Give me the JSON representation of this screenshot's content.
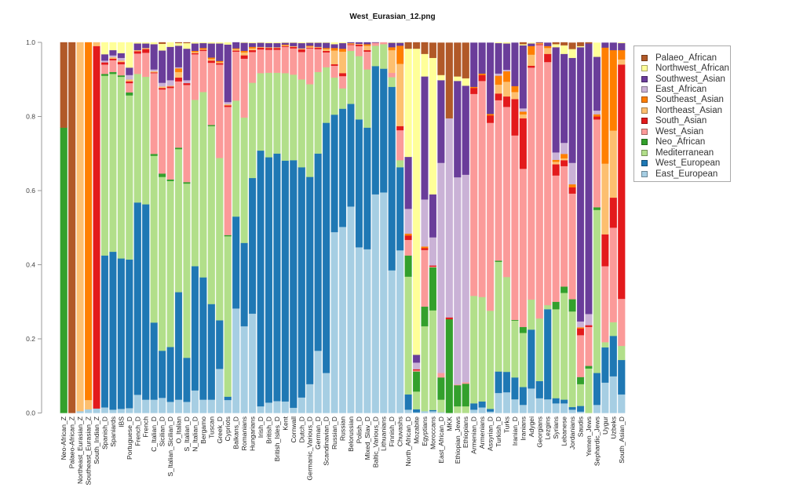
{
  "chart_data": {
    "type": "bar",
    "stacked": true,
    "title": "West_Eurasian_12.png",
    "xlabel": "",
    "ylabel": "",
    "ylim": [
      0,
      1
    ],
    "yticks": [
      "0.0",
      "0.2",
      "0.4",
      "0.6",
      "0.8",
      "1.0"
    ],
    "grid": false,
    "legend_position": "right",
    "components": [
      {
        "name": "East_European",
        "color": "#a6cee3"
      },
      {
        "name": "West_European",
        "color": "#1f78b4"
      },
      {
        "name": "Mediterranean",
        "color": "#b2df8a"
      },
      {
        "name": "Neo_African",
        "color": "#33a02c"
      },
      {
        "name": "West_Asian",
        "color": "#fb9a99"
      },
      {
        "name": "South_Asian",
        "color": "#e31a1c"
      },
      {
        "name": "Northeast_Asian",
        "color": "#fdbf6f"
      },
      {
        "name": "Southeast_Asian",
        "color": "#ff7f00"
      },
      {
        "name": "East_African",
        "color": "#cab2d6"
      },
      {
        "name": "Southwest_Asian",
        "color": "#6a3d9a"
      },
      {
        "name": "Northwest_African",
        "color": "#ffff99"
      },
      {
        "name": "Palaeo_African",
        "color": "#b15928"
      }
    ],
    "bars": [
      {
        "label": "Neo-African_Z",
        "values": [
          0,
          0,
          0,
          0.77,
          0,
          0,
          0,
          0,
          0,
          0,
          0,
          0.23
        ]
      },
      {
        "label": "Palaeo-African_Z",
        "values": [
          0,
          0,
          0,
          0,
          0,
          0,
          0,
          0,
          0,
          0,
          0,
          1
        ]
      },
      {
        "label": "Northeast_Eurasian_Z",
        "values": [
          0.005,
          0,
          0,
          0,
          0,
          0,
          0.995,
          0,
          0,
          0,
          0,
          0
        ]
      },
      {
        "label": "Southeast_Eurasian_Z",
        "values": [
          0.01,
          0,
          0,
          0,
          0,
          0,
          0.025,
          0.965,
          0,
          0,
          0,
          0
        ]
      },
      {
        "label": "South_Indian_Z",
        "values": [
          0.012,
          0,
          0,
          0,
          0,
          0.978,
          0.01,
          0,
          0,
          0,
          0,
          0
        ]
      },
      {
        "label": "Spanish_D",
        "values": [
          0.015,
          0.41,
          0.485,
          0.005,
          0.025,
          0.006,
          0,
          0,
          0.005,
          0.017,
          0.032,
          0
        ]
      },
      {
        "label": "Spaniards",
        "values": [
          0.009,
          0.426,
          0.48,
          0.005,
          0.032,
          0.004,
          0.004,
          0,
          0.005,
          0.014,
          0.021,
          0
        ]
      },
      {
        "label": "IBS",
        "values": [
          0.011,
          0.406,
          0.49,
          0.004,
          0.03,
          0.006,
          0.004,
          0,
          0.007,
          0.013,
          0.029,
          0
        ]
      },
      {
        "label": "Portuguese_D",
        "values": [
          0.013,
          0.401,
          0.443,
          0.008,
          0.025,
          0.005,
          0.005,
          0,
          0.012,
          0.02,
          0.068,
          0
        ]
      },
      {
        "label": "French_D",
        "values": [
          0.049,
          0.519,
          0.347,
          0,
          0.055,
          0.006,
          0.003,
          0,
          0,
          0.018,
          0.003,
          0
        ]
      },
      {
        "label": "French",
        "values": [
          0.036,
          0.527,
          0.344,
          0,
          0.065,
          0.01,
          0.003,
          0,
          0,
          0.012,
          0.003,
          0
        ]
      },
      {
        "label": "C_Italian_D",
        "values": [
          0.036,
          0.208,
          0.45,
          0.005,
          0.218,
          0.002,
          0.003,
          0,
          0.005,
          0.068,
          0.005,
          0
        ]
      },
      {
        "label": "Sicilian_D",
        "values": [
          0.041,
          0.127,
          0.469,
          0.009,
          0.227,
          0.004,
          0.004,
          0,
          0.01,
          0.087,
          0.018,
          0.004
        ]
      },
      {
        "label": "S_Italian_Sicilian_D",
        "values": [
          0.03,
          0.148,
          0.448,
          0.004,
          0.247,
          0.004,
          0.002,
          0,
          0.015,
          0.09,
          0.012,
          0
        ]
      },
      {
        "label": "O_Italian",
        "values": [
          0.036,
          0.29,
          0.386,
          0.004,
          0.179,
          0.01,
          0.015,
          0.01,
          0.003,
          0.058,
          0.007,
          0.002
        ]
      },
      {
        "label": "S_Italian_D",
        "values": [
          0.03,
          0.119,
          0.47,
          0.004,
          0.262,
          0.005,
          0,
          0,
          0.008,
          0.085,
          0.015,
          0.002
        ]
      },
      {
        "label": "N_Italian_D",
        "values": [
          0.061,
          0.335,
          0.449,
          0,
          0.123,
          0.003,
          0.003,
          0.003,
          0,
          0.02,
          0.003,
          0
        ]
      },
      {
        "label": "Bergamo",
        "values": [
          0.036,
          0.33,
          0.5,
          0,
          0.111,
          0.003,
          0.002,
          0.003,
          0,
          0.013,
          0.002,
          0
        ]
      },
      {
        "label": "Tuscan",
        "values": [
          0.036,
          0.258,
          0.48,
          0.003,
          0.168,
          0.006,
          0.004,
          0.004,
          0,
          0.038,
          0.003,
          0
        ]
      },
      {
        "label": "Greek_D",
        "values": [
          0.119,
          0.131,
          0.438,
          0,
          0.252,
          0.004,
          0.003,
          0.003,
          0,
          0.047,
          0.003,
          0
        ]
      },
      {
        "label": "Cypriots",
        "values": [
          0.035,
          0.009,
          0.433,
          0.003,
          0.346,
          0.004,
          0.003,
          0,
          0.006,
          0.155,
          0.006,
          0
        ]
      },
      {
        "label": "Balkans_D",
        "values": [
          0.282,
          0.248,
          0.313,
          0,
          0.132,
          0.003,
          0.004,
          0.002,
          0,
          0.016,
          0,
          0
        ]
      },
      {
        "label": "Romanians",
        "values": [
          0.234,
          0.225,
          0.338,
          0,
          0.159,
          0.009,
          0.008,
          0.004,
          0,
          0.022,
          0.001,
          0
        ]
      },
      {
        "label": "Hungarians",
        "values": [
          0.268,
          0.366,
          0.257,
          0,
          0.083,
          0.005,
          0.005,
          0.004,
          0,
          0.01,
          0.002,
          0
        ]
      },
      {
        "label": "Irish_D",
        "values": [
          0.018,
          0.69,
          0.209,
          0,
          0.064,
          0.005,
          0.002,
          0,
          0,
          0.011,
          0.001,
          0
        ]
      },
      {
        "label": "British_D",
        "values": [
          0.028,
          0.662,
          0.228,
          0,
          0.062,
          0.005,
          0.002,
          0,
          0,
          0.011,
          0.002,
          0
        ]
      },
      {
        "label": "British_Isles_D",
        "values": [
          0.032,
          0.668,
          0.218,
          0,
          0.062,
          0.005,
          0.002,
          0,
          0,
          0.011,
          0.002,
          0
        ]
      },
      {
        "label": "Kent",
        "values": [
          0.031,
          0.65,
          0.236,
          0,
          0.071,
          0.002,
          0.002,
          0.002,
          0,
          0.005,
          0.001,
          0
        ]
      },
      {
        "label": "Cornwall",
        "values": [
          0.014,
          0.668,
          0.231,
          0,
          0.071,
          0.004,
          0.002,
          0,
          0,
          0.009,
          0.001,
          0
        ]
      },
      {
        "label": "Dutch_D",
        "values": [
          0.042,
          0.621,
          0.237,
          0,
          0.074,
          0.007,
          0.003,
          0,
          0,
          0.014,
          0.002,
          0
        ]
      },
      {
        "label": "Germanic_Various_D",
        "values": [
          0.078,
          0.559,
          0.25,
          0,
          0.097,
          0.002,
          0.003,
          0.002,
          0,
          0.008,
          0.001,
          0
        ]
      },
      {
        "label": "German_D",
        "values": [
          0.168,
          0.532,
          0.22,
          0,
          0.062,
          0.004,
          0.002,
          0,
          0,
          0.011,
          0.001,
          0
        ]
      },
      {
        "label": "Scandinavian_D",
        "values": [
          0.108,
          0.675,
          0.15,
          0,
          0.04,
          0.004,
          0.005,
          0.003,
          0,
          0.014,
          0.001,
          0
        ]
      },
      {
        "label": "Russian_D",
        "values": [
          0.488,
          0.317,
          0.1,
          0,
          0.032,
          0.004,
          0.037,
          0.007,
          0,
          0.01,
          0.005,
          0
        ]
      },
      {
        "label": "Russian",
        "values": [
          0.502,
          0.319,
          0.055,
          0,
          0.033,
          0.008,
          0.058,
          0.008,
          0,
          0.015,
          0.002,
          0
        ]
      },
      {
        "label": "Belorussian",
        "values": [
          0.557,
          0.277,
          0.143,
          0,
          0.016,
          0.002,
          0.002,
          0.001,
          0,
          0.002,
          0,
          0
        ]
      },
      {
        "label": "Polish_D",
        "values": [
          0.447,
          0.345,
          0.171,
          0,
          0.027,
          0.004,
          0.002,
          0,
          0,
          0.004,
          0,
          0
        ]
      },
      {
        "label": "Mixed_Slav_D",
        "values": [
          0.442,
          0.328,
          0.157,
          0,
          0.048,
          0.004,
          0.012,
          0.004,
          0,
          0.005,
          0,
          0
        ]
      },
      {
        "label": "Baltic_Various_D",
        "values": [
          0.59,
          0.346,
          0.055,
          0,
          0.008,
          0,
          0,
          0,
          0,
          0.001,
          0,
          0
        ]
      },
      {
        "label": "Lithuanians",
        "values": [
          0.595,
          0.334,
          0.066,
          0,
          0.005,
          0,
          0,
          0,
          0,
          0,
          0,
          0
        ]
      },
      {
        "label": "Finnish_D",
        "values": [
          0.385,
          0.495,
          0.026,
          0,
          0.012,
          0,
          0.061,
          0.008,
          0,
          0.012,
          0.001,
          0
        ]
      },
      {
        "label": "Chuvashs",
        "values": [
          0.439,
          0.224,
          0.019,
          0,
          0.081,
          0.011,
          0.168,
          0.049,
          0,
          0.008,
          0.001,
          0
        ]
      },
      {
        "label": "North_African_D",
        "values": [
          0.009,
          0.041,
          0.318,
          0.057,
          0.042,
          0.012,
          0,
          0.005,
          0.067,
          0.14,
          0.292,
          0.017
        ]
      },
      {
        "label": "Mozabite",
        "values": [
          0.002,
          0.008,
          0.048,
          0.054,
          0.003,
          0.003,
          0,
          0,
          0.018,
          0.021,
          0.826,
          0.017
        ]
      },
      {
        "label": "Egyptians",
        "values": [
          0.005,
          0,
          0.229,
          0.053,
          0.153,
          0.005,
          0,
          0.004,
          0.127,
          0.332,
          0.061,
          0.031
        ]
      },
      {
        "label": "Moroccans",
        "values": [
          0.005,
          0.003,
          0.269,
          0.116,
          0.002,
          0.003,
          0,
          0,
          0.076,
          0.116,
          0.368,
          0.041
        ]
      },
      {
        "label": "East_African_D",
        "values": [
          0.002,
          0,
          0.034,
          0.06,
          0.012,
          0,
          0,
          0,
          0.567,
          0.223,
          0.014,
          0.087
        ]
      },
      {
        "label": "MKK",
        "values": [
          0,
          0,
          0,
          0.253,
          0,
          0.005,
          0,
          0,
          0.537,
          0,
          0,
          0.204
        ]
      },
      {
        "label": "Ethiopian_Jews",
        "values": [
          0,
          0,
          0.018,
          0.057,
          0.002,
          0,
          0,
          0,
          0.559,
          0.26,
          0.012,
          0.091
        ]
      },
      {
        "label": "Ethiopians",
        "values": [
          0,
          0,
          0.018,
          0.061,
          0.004,
          0,
          0,
          0,
          0.56,
          0.24,
          0.02,
          0.096
        ]
      },
      {
        "label": "Armenian_D",
        "values": [
          0.009,
          0.017,
          0.29,
          0,
          0.545,
          0.016,
          0,
          0.003,
          0,
          0.119,
          0,
          0
        ]
      },
      {
        "label": "Armenians",
        "values": [
          0.015,
          0.016,
          0.282,
          0,
          0.583,
          0.016,
          0,
          0.004,
          0,
          0.083,
          0,
          0
        ]
      },
      {
        "label": "Assyrian_D",
        "values": [
          0.004,
          0.007,
          0.265,
          0,
          0.507,
          0.02,
          0,
          0.004,
          0,
          0.192,
          0,
          0
        ]
      },
      {
        "label": "Turkish_D",
        "values": [
          0.054,
          0.058,
          0.296,
          0.003,
          0.433,
          0.018,
          0.024,
          0.024,
          0.006,
          0.082,
          0.002,
          0
        ]
      },
      {
        "label": "Turks",
        "values": [
          0.056,
          0.055,
          0.256,
          0,
          0.459,
          0.028,
          0.04,
          0.028,
          0.004,
          0.071,
          0.003,
          0
        ]
      },
      {
        "label": "Iranian_D",
        "values": [
          0.037,
          0.059,
          0.153,
          0.002,
          0.498,
          0.098,
          0.019,
          0.016,
          0,
          0.117,
          0,
          0
        ]
      },
      {
        "label": "Iranians",
        "values": [
          0.022,
          0.048,
          0.146,
          0.016,
          0.427,
          0.136,
          0.011,
          0.007,
          0.009,
          0.17,
          0.003,
          0.005
        ]
      },
      {
        "label": "Adygei",
        "values": [
          0.066,
          0.159,
          0.081,
          0,
          0.626,
          0.005,
          0.03,
          0.023,
          0,
          0.007,
          0.002,
          0
        ]
      },
      {
        "label": "Georgians",
        "values": [
          0.04,
          0.046,
          0.169,
          0,
          0.738,
          0.002,
          0.002,
          0.002,
          0,
          0.001,
          0,
          0
        ]
      },
      {
        "label": "Lezgins",
        "values": [
          0.037,
          0.243,
          0.011,
          0,
          0.656,
          0.022,
          0.016,
          0.005,
          0,
          0.009,
          0,
          0
        ]
      },
      {
        "label": "Syrians",
        "values": [
          0.026,
          0.014,
          0.24,
          0.02,
          0.341,
          0.03,
          0.007,
          0.005,
          0.02,
          0.284,
          0.008,
          0.005
        ]
      },
      {
        "label": "Lebanese",
        "values": [
          0.026,
          0.01,
          0.288,
          0.017,
          0.325,
          0.016,
          0.005,
          0.012,
          0.03,
          0.24,
          0.023,
          0.008
        ]
      },
      {
        "label": "Jordanians",
        "values": [
          0.009,
          0.007,
          0.258,
          0.033,
          0.285,
          0.017,
          0,
          0.008,
          0.058,
          0.283,
          0.024,
          0.017
        ]
      },
      {
        "label": "Saudis",
        "values": [
          0.004,
          0.015,
          0.059,
          0.019,
          0.113,
          0.018,
          0,
          0.003,
          0.016,
          0.74,
          0.003,
          0.01
        ]
      },
      {
        "label": "Yemen_Jews",
        "values": [
          0,
          0,
          0.12,
          0.007,
          0.105,
          0.005,
          0,
          0,
          0.03,
          0.73,
          0,
          0.003
        ]
      },
      {
        "label": "Sephardic_Jews",
        "values": [
          0.022,
          0.086,
          0.44,
          0.007,
          0.237,
          0.008,
          0,
          0.006,
          0.01,
          0.145,
          0.038,
          0
        ]
      },
      {
        "label": "Uygur",
        "values": [
          0.082,
          0.095,
          0.014,
          0,
          0.205,
          0.086,
          0.191,
          0.313,
          0,
          0.013,
          0,
          0
        ]
      },
      {
        "label": "Uzbeks",
        "values": [
          0.099,
          0.109,
          0.037,
          0,
          0.255,
          0.081,
          0.181,
          0.217,
          0,
          0.02,
          0,
          0
        ]
      },
      {
        "label": "South_Asian_D",
        "values": [
          0.05,
          0.093,
          0.038,
          0,
          0.127,
          0.632,
          0.014,
          0.025,
          0,
          0.019,
          0.002,
          0
        ]
      }
    ]
  }
}
